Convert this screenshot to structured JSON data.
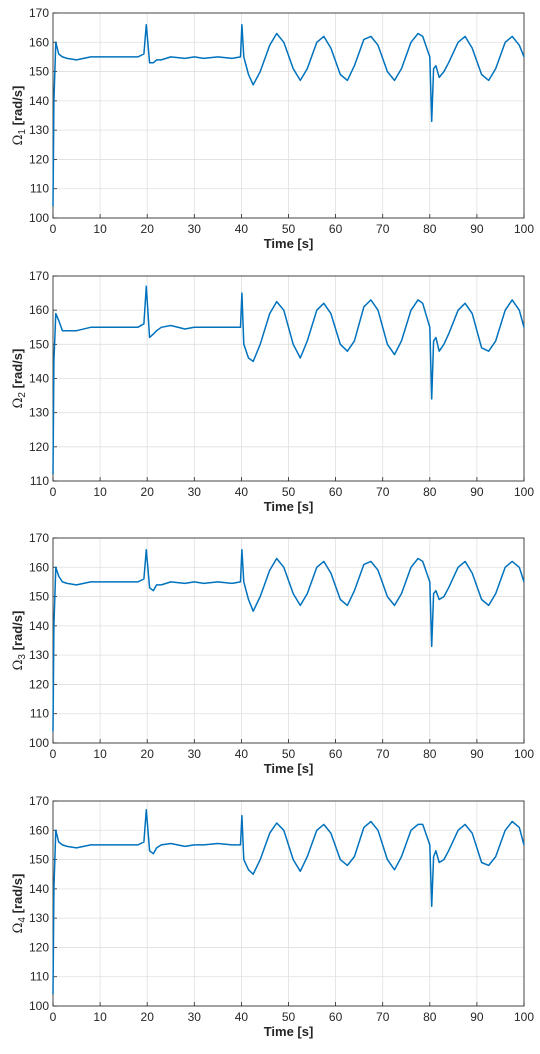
{
  "colors": {
    "line": "#0072bd",
    "grid": "#e0e0e0",
    "axis": "#262626",
    "background": "#ffffff"
  },
  "chart_data": [
    {
      "type": "line",
      "ylabel": "Ω1 [rad/s]",
      "ylabel_main": "Ω",
      "ylabel_sub": "1",
      "ylabel_unit": " [rad/s]",
      "xlabel": "Time [s]",
      "xlim": [
        0,
        100
      ],
      "ylim": [
        100,
        170
      ],
      "xticks": [
        0,
        10,
        20,
        30,
        40,
        50,
        60,
        70,
        80,
        90,
        100
      ],
      "yticks": [
        100,
        110,
        120,
        130,
        140,
        150,
        160,
        170
      ],
      "grid": true,
      "series": [
        {
          "x": [
            0,
            0.2,
            0.6,
            1.2,
            2,
            3,
            5,
            8,
            10,
            12,
            15,
            18,
            19.3,
            19.8,
            20.5,
            21.3,
            22,
            23,
            25,
            28,
            30,
            32,
            35,
            38,
            39.8,
            40.1,
            40.5,
            41.5,
            42.5,
            44,
            46,
            47.5,
            49,
            51,
            52.5,
            54,
            56,
            57.5,
            59,
            61,
            62.5,
            64,
            66,
            67.5,
            69,
            71,
            72.5,
            74,
            76,
            77.5,
            78.5,
            80,
            80.4,
            80.8,
            81.3,
            82,
            83,
            84,
            86,
            87.5,
            89,
            91,
            92.5,
            94,
            96,
            97.5,
            99,
            100
          ],
          "y": [
            104,
            140,
            160,
            156,
            155,
            154.5,
            154,
            155,
            155,
            155,
            155,
            155,
            156,
            166,
            153,
            153,
            154,
            154,
            155,
            154.5,
            155,
            154.5,
            155,
            154.5,
            155,
            166,
            155,
            149,
            145.5,
            150,
            159,
            163,
            160,
            151,
            147,
            151,
            160,
            162,
            158,
            149,
            147,
            152,
            161,
            162,
            159,
            150,
            147,
            151,
            160,
            163,
            162,
            155,
            133,
            151,
            152,
            148,
            150,
            153,
            160,
            162,
            158,
            149,
            147,
            151,
            160,
            162,
            159,
            155
          ]
        }
      ]
    },
    {
      "type": "line",
      "ylabel": "Ω2 [rad/s]",
      "ylabel_main": "Ω",
      "ylabel_sub": "2",
      "ylabel_unit": " [rad/s]",
      "xlabel": "Time [s]",
      "xlim": [
        0,
        100
      ],
      "ylim": [
        110,
        170
      ],
      "xticks": [
        0,
        10,
        20,
        30,
        40,
        50,
        60,
        70,
        80,
        90,
        100
      ],
      "yticks": [
        110,
        120,
        130,
        140,
        150,
        160,
        170
      ],
      "grid": true,
      "series": [
        {
          "x": [
            0,
            0.2,
            0.6,
            1.2,
            2,
            3,
            5,
            8,
            10,
            12,
            15,
            18,
            19.3,
            19.8,
            20.5,
            21.3,
            22,
            23,
            25,
            28,
            30,
            32,
            35,
            38,
            39.8,
            40.1,
            40.5,
            41.5,
            42.5,
            44,
            46,
            47.5,
            49,
            51,
            52.5,
            54,
            56,
            57.5,
            59,
            61,
            62.5,
            64,
            66,
            67.5,
            69,
            71,
            72.5,
            74,
            76,
            77.5,
            78.5,
            80,
            80.4,
            80.8,
            81.3,
            82,
            83,
            84,
            86,
            87.5,
            89,
            91,
            92.5,
            94,
            96,
            97.5,
            99,
            100
          ],
          "y": [
            112,
            145,
            159,
            157,
            154,
            154,
            154,
            155,
            155,
            155,
            155,
            155,
            156,
            167,
            152,
            153,
            154,
            155,
            155.5,
            154.5,
            155,
            155,
            155,
            155,
            155,
            165,
            150,
            146,
            145,
            150,
            159,
            162.5,
            160,
            150,
            146,
            151,
            160,
            162,
            159,
            150,
            148,
            151,
            161,
            163,
            160,
            150,
            147,
            151,
            160,
            163,
            162,
            155,
            134,
            151,
            152,
            148,
            150,
            153,
            160,
            162,
            159,
            149,
            148,
            151,
            160,
            163,
            160,
            155
          ]
        }
      ]
    },
    {
      "type": "line",
      "ylabel": "Ω3 [rad/s]",
      "ylabel_main": "Ω",
      "ylabel_sub": "3",
      "ylabel_unit": " [rad/s]",
      "xlabel": "Time [s]",
      "xlim": [
        0,
        100
      ],
      "ylim": [
        100,
        170
      ],
      "xticks": [
        0,
        10,
        20,
        30,
        40,
        50,
        60,
        70,
        80,
        90,
        100
      ],
      "yticks": [
        100,
        110,
        120,
        130,
        140,
        150,
        160,
        170
      ],
      "grid": true,
      "series": [
        {
          "x": [
            0,
            0.2,
            0.6,
            1.2,
            2,
            3,
            5,
            8,
            10,
            12,
            15,
            18,
            19.3,
            19.8,
            20.5,
            21.3,
            22,
            23,
            25,
            28,
            30,
            32,
            35,
            38,
            39.8,
            40.1,
            40.5,
            41.5,
            42.5,
            44,
            46,
            47.5,
            49,
            51,
            52.5,
            54,
            56,
            57.5,
            59,
            61,
            62.5,
            64,
            66,
            67.5,
            69,
            71,
            72.5,
            74,
            76,
            77.5,
            78.5,
            80,
            80.4,
            80.8,
            81.3,
            82,
            83,
            84,
            86,
            87.5,
            89,
            91,
            92.5,
            94,
            96,
            97.5,
            99,
            100
          ],
          "y": [
            104,
            140,
            160,
            157,
            155,
            154.5,
            154,
            155,
            155,
            155,
            155,
            155,
            156,
            166,
            153,
            152,
            154,
            154,
            155,
            154.5,
            155,
            154.5,
            155,
            154.5,
            155,
            166,
            155,
            149,
            145,
            150,
            159,
            163,
            160,
            151,
            147,
            151,
            160,
            162,
            158,
            149,
            147,
            152,
            161,
            162,
            159,
            150,
            147,
            151,
            160,
            163,
            162,
            155,
            133,
            151,
            152,
            149,
            150,
            153,
            160,
            162,
            158,
            149,
            147,
            151,
            160,
            162,
            160,
            155
          ]
        }
      ]
    },
    {
      "type": "line",
      "ylabel": "Ω4 [rad/s]",
      "ylabel_main": "Ω",
      "ylabel_sub": "4",
      "ylabel_unit": " [rad/s]",
      "xlabel": "Time [s]",
      "xlim": [
        0,
        100
      ],
      "ylim": [
        100,
        170
      ],
      "xticks": [
        0,
        10,
        20,
        30,
        40,
        50,
        60,
        70,
        80,
        90,
        100
      ],
      "yticks": [
        100,
        110,
        120,
        130,
        140,
        150,
        160,
        170
      ],
      "grid": true,
      "series": [
        {
          "x": [
            0,
            0.2,
            0.6,
            1.2,
            2,
            3,
            5,
            8,
            10,
            12,
            15,
            18,
            19.3,
            19.8,
            20.5,
            21.3,
            22,
            23,
            25,
            28,
            30,
            32,
            35,
            38,
            39.8,
            40.1,
            40.5,
            41.5,
            42.5,
            44,
            46,
            47.5,
            49,
            51,
            52.5,
            54,
            56,
            57.5,
            59,
            61,
            62.5,
            64,
            66,
            67.5,
            69,
            71,
            72.5,
            74,
            76,
            77.5,
            78.5,
            80,
            80.4,
            80.8,
            81.3,
            82,
            83,
            84,
            86,
            87.5,
            89,
            91,
            92.5,
            94,
            96,
            97.5,
            99,
            100
          ],
          "y": [
            104,
            140,
            160,
            156,
            155,
            154.5,
            154,
            155,
            155,
            155,
            155,
            155,
            156,
            167,
            153,
            152,
            154,
            155,
            155.5,
            154.5,
            155,
            155,
            155.5,
            155,
            155,
            165,
            150,
            146.5,
            145,
            150,
            159,
            162.5,
            160,
            150,
            146,
            151,
            160,
            162,
            159,
            150,
            148,
            151,
            161,
            163,
            160,
            150,
            146.5,
            151,
            160,
            162,
            162,
            155,
            134,
            151,
            153,
            149,
            150,
            153,
            160,
            162,
            159,
            149,
            148,
            151,
            160,
            163,
            161,
            155
          ]
        }
      ]
    }
  ]
}
